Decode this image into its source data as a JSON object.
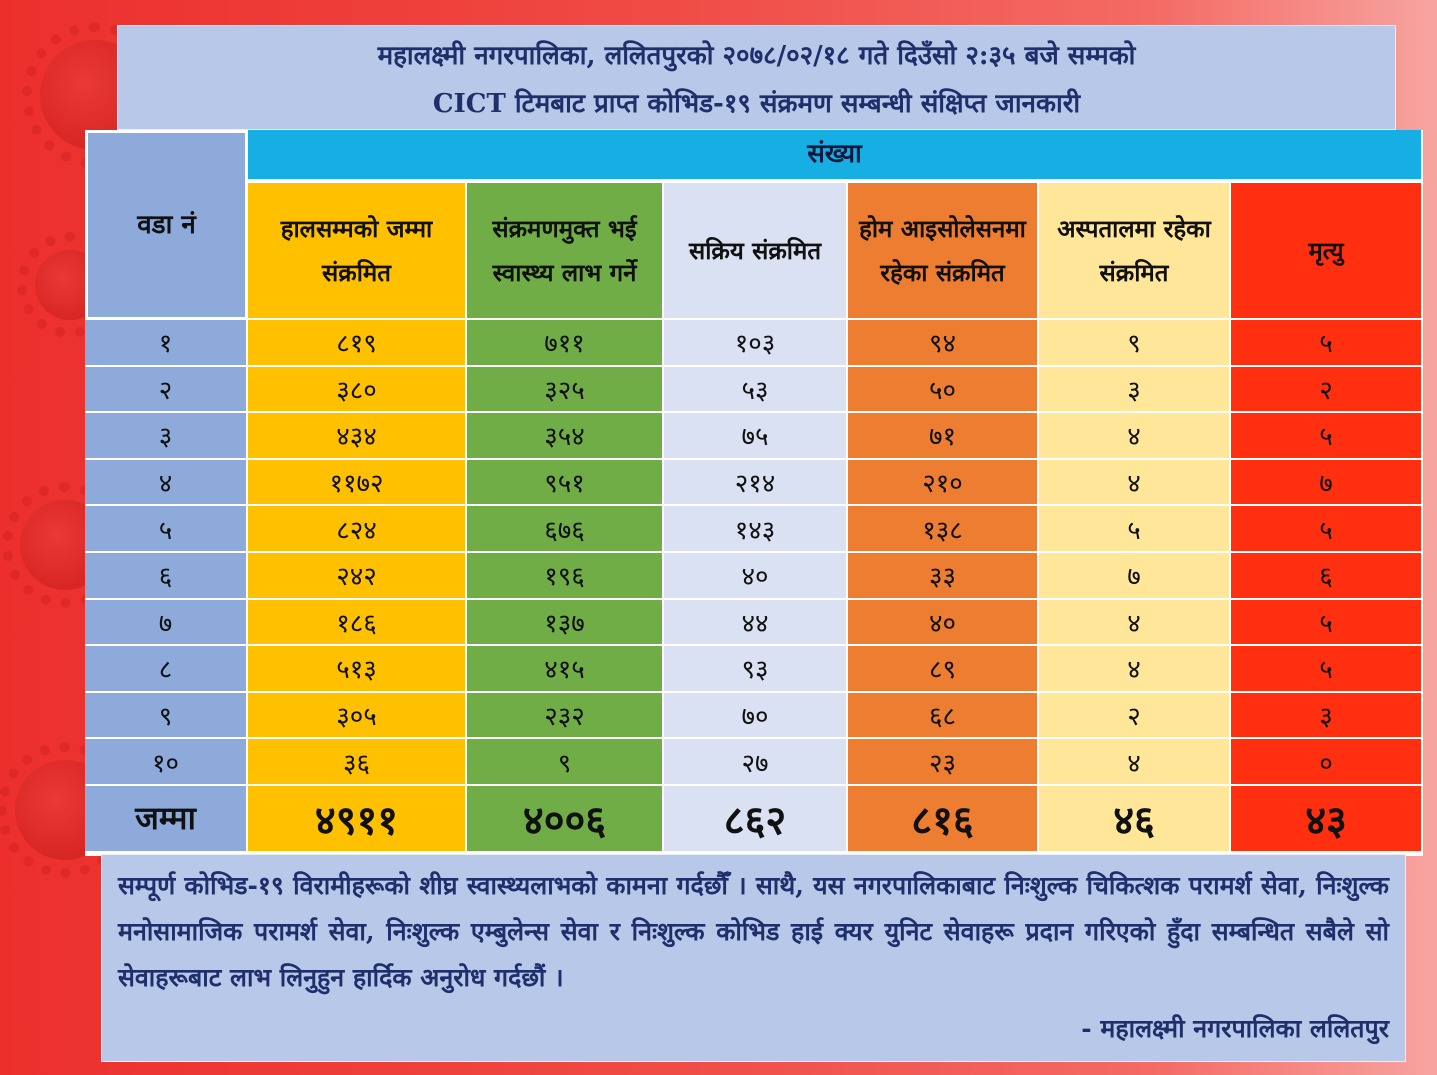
{
  "header": {
    "line1": "महालक्ष्मी नगरपालिका, ललितपुरको २०७८/०२/१८ गते दिउँसो २:३५ बजे सम्मको",
    "line2": "CICT टिमबाट प्राप्त कोभिड-१९ संक्रमण सम्बन्धी संक्षिप्त जानकारी"
  },
  "table": {
    "ward_header": "वडा नं",
    "group_header": "संख्या",
    "columns": [
      "हालसम्मको जम्मा संक्रमित",
      "संक्रमणमुक्त भई स्वास्थ्य लाभ गर्ने",
      "सक्रिय संक्रमित",
      "होम आइसोलेसनमा रहेका संक्रमित",
      "अस्पतालमा रहेका संक्रमित",
      "मृत्यु"
    ],
    "rows": [
      [
        "१",
        "८१९",
        "७११",
        "१०३",
        "९४",
        "९",
        "५"
      ],
      [
        "२",
        "३८०",
        "३२५",
        "५३",
        "५०",
        "३",
        "२"
      ],
      [
        "३",
        "४३४",
        "३५४",
        "७५",
        "७१",
        "४",
        "५"
      ],
      [
        "४",
        "११७२",
        "९५१",
        "२१४",
        "२१०",
        "४",
        "७"
      ],
      [
        "५",
        "८२४",
        "६७६",
        "१४३",
        "१३८",
        "५",
        "५"
      ],
      [
        "६",
        "२४२",
        "१९६",
        "४०",
        "३३",
        "७",
        "६"
      ],
      [
        "७",
        "१८६",
        "१३७",
        "४४",
        "४०",
        "४",
        "५"
      ],
      [
        "८",
        "५१३",
        "४१५",
        "९३",
        "८९",
        "४",
        "५"
      ],
      [
        "९",
        "३०५",
        "२३२",
        "७०",
        "६८",
        "२",
        "३"
      ],
      [
        "१०",
        "३६",
        "९",
        "२७",
        "२३",
        "४",
        "०"
      ]
    ],
    "total": [
      "जम्मा",
      "४९११",
      "४००६",
      "८६२",
      "८१६",
      "४६",
      "४३"
    ]
  },
  "footer": {
    "message": "सम्पूर्ण कोभिड-१९ विरामीहरूको शीघ्र स्वास्थ्यलाभको कामना गर्दछौँ । साथै, यस नगरपालिकाबाट निःशुल्क चिकित्शक परामर्श सेवा, निःशुल्क मनोसामाजिक परामर्श सेवा, निःशुल्क एम्बुलेन्स सेवा र निःशुल्क कोभिड हाई क्यर युनिट सेवाहरू प्रदान गरिएको हुँदा सम्बन्धित सबैले सो सेवाहरूबाट लाभ लिनुहुन हार्दिक अनुरोध गर्दछौं ।",
    "signature": "- महालक्ष्मी नगरपालिका ललितपुर"
  },
  "colors": {
    "ward": "#8eaadb",
    "total_infected": "#ffc000",
    "recovered": "#70ad47",
    "active": "#d9e1f2",
    "home_isolation": "#ed7d31",
    "hospital": "#ffe699",
    "deaths": "#ff2f0f",
    "group_header": "#17aee3"
  },
  "decorations": [
    "virus-icon"
  ]
}
